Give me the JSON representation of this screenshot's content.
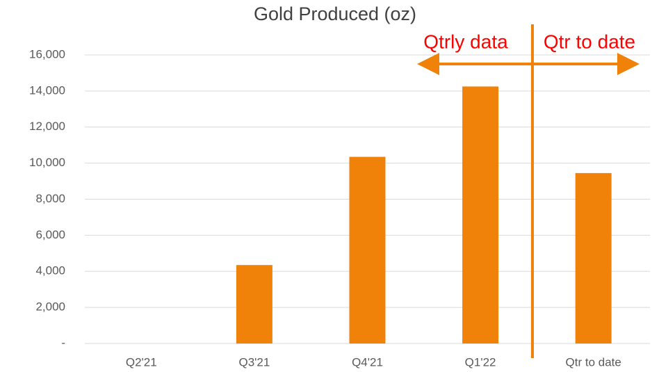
{
  "chart_data": {
    "type": "bar",
    "title": "Gold Produced (oz)",
    "categories": [
      "Q2'21",
      "Q3'21",
      "Q4'21",
      "Q1'22",
      "Qtr to date"
    ],
    "values": [
      0,
      4350,
      10350,
      14250,
      9450
    ],
    "color": "#f0820a",
    "ylim": [
      0,
      16000
    ],
    "yticks": [
      {
        "value": 0,
        "label": "-"
      },
      {
        "value": 2000,
        "label": "2,000"
      },
      {
        "value": 4000,
        "label": "4,000"
      },
      {
        "value": 6000,
        "label": "6,000"
      },
      {
        "value": 8000,
        "label": "8,000"
      },
      {
        "value": 10000,
        "label": "10,000"
      },
      {
        "value": 12000,
        "label": "12,000"
      },
      {
        "value": 14000,
        "label": "14,000"
      },
      {
        "value": 16000,
        "label": "16,000"
      }
    ],
    "grid": true,
    "annotations": [
      "Qtrly data",
      "Qtr to date"
    ]
  }
}
